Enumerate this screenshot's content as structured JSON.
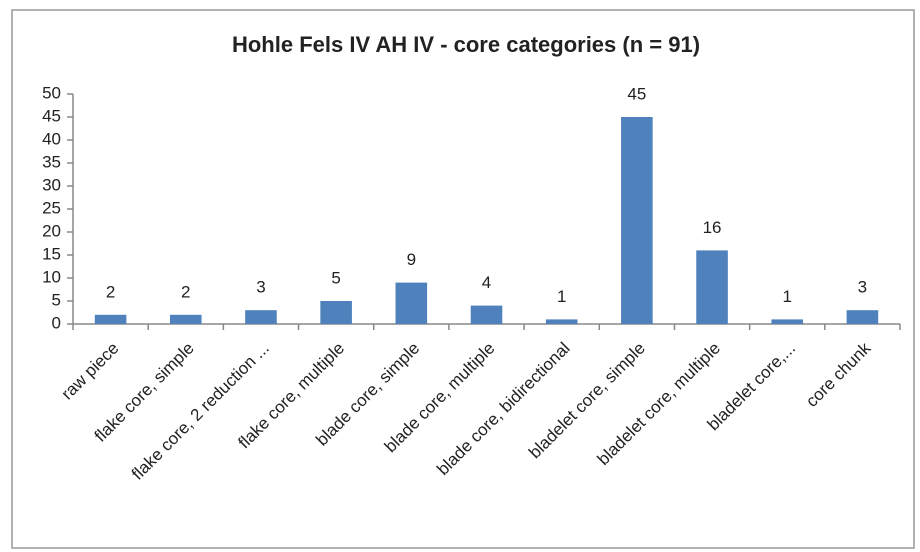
{
  "chart_data": {
    "type": "bar",
    "title": "Hohle Fels IV AH IV - core categories (n = 91)",
    "categories": [
      "raw piece",
      "flake core, simple",
      "flake core, 2 reduction ...",
      "flake core, multiple",
      "blade core, simple",
      "blade core, multiple",
      "blade core, bidirectional",
      "bladelet core, simple",
      "bladelet core, multiple",
      "bladelet core,...",
      "core chunk"
    ],
    "values": [
      2,
      2,
      3,
      5,
      9,
      4,
      1,
      45,
      16,
      1,
      3
    ],
    "color": "#4f81bd",
    "ylim": [
      0,
      50
    ],
    "yticks": [
      0,
      5,
      10,
      15,
      20,
      25,
      30,
      35,
      40,
      45,
      50
    ],
    "grid": false
  }
}
